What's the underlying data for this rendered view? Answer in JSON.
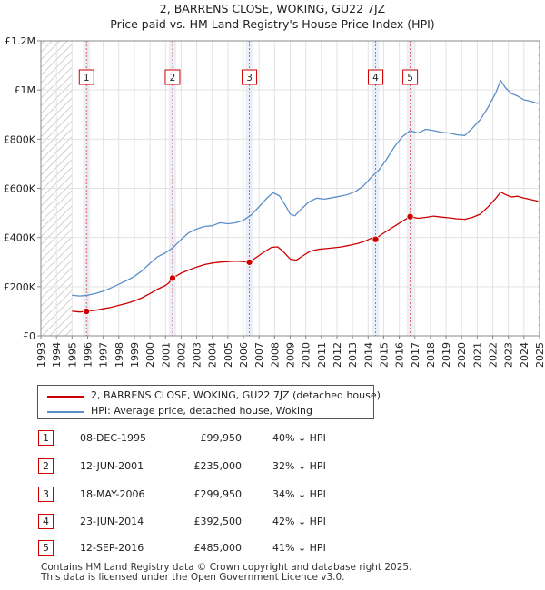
{
  "chart_data": {
    "type": "line",
    "title": "2, BARRENS CLOSE, WOKING, GU22 7JZ",
    "subtitle": "Price paid vs. HM Land Registry's House Price Index (HPI)",
    "xlim": [
      1993,
      2025
    ],
    "ylim": [
      0,
      1200000
    ],
    "x_ticks": [
      "1993",
      "1994",
      "1995",
      "1996",
      "1997",
      "1998",
      "1999",
      "2000",
      "2001",
      "2002",
      "2003",
      "2004",
      "2005",
      "2006",
      "2007",
      "2008",
      "2009",
      "2010",
      "2011",
      "2012",
      "2013",
      "2014",
      "2015",
      "2016",
      "2017",
      "2018",
      "2019",
      "2020",
      "2021",
      "2022",
      "2023",
      "2024",
      "2025"
    ],
    "y_ticks": [
      {
        "value": 0,
        "label": "£0"
      },
      {
        "value": 200000,
        "label": "£200K"
      },
      {
        "value": 400000,
        "label": "£400K"
      },
      {
        "value": 600000,
        "label": "£600K"
      },
      {
        "value": 800000,
        "label": "£800K"
      },
      {
        "value": 1000000,
        "label": "£1M"
      },
      {
        "value": 1200000,
        "label": "£1.2M"
      }
    ],
    "data_start": 1995.0,
    "data_end": 2024.9,
    "hatch_before": 1995.0,
    "series": [
      {
        "name": "2, BARRENS CLOSE, WOKING, GU22 7JZ (detached house)",
        "color": "#cc0000",
        "points": [
          [
            1995.0,
            100000
          ],
          [
            1995.5,
            97000
          ],
          [
            1995.93,
            99950
          ],
          [
            1996.5,
            104000
          ],
          [
            1997.0,
            110000
          ],
          [
            1997.5,
            116000
          ],
          [
            1998.0,
            124000
          ],
          [
            1998.5,
            132000
          ],
          [
            1999.0,
            142000
          ],
          [
            1999.5,
            155000
          ],
          [
            2000.0,
            172000
          ],
          [
            2000.5,
            190000
          ],
          [
            2001.0,
            205000
          ],
          [
            2001.2,
            215000
          ],
          [
            2001.45,
            235000
          ],
          [
            2002.0,
            255000
          ],
          [
            2002.5,
            268000
          ],
          [
            2003.0,
            280000
          ],
          [
            2003.5,
            290000
          ],
          [
            2004.0,
            296000
          ],
          [
            2004.5,
            300000
          ],
          [
            2005.0,
            302000
          ],
          [
            2005.5,
            304000
          ],
          [
            2006.0,
            302000
          ],
          [
            2006.38,
            299950
          ],
          [
            2006.8,
            318000
          ],
          [
            2007.3,
            340000
          ],
          [
            2007.8,
            360000
          ],
          [
            2008.2,
            362000
          ],
          [
            2008.6,
            340000
          ],
          [
            2009.0,
            312000
          ],
          [
            2009.4,
            308000
          ],
          [
            2009.8,
            325000
          ],
          [
            2010.3,
            345000
          ],
          [
            2010.8,
            352000
          ],
          [
            2011.3,
            355000
          ],
          [
            2011.8,
            358000
          ],
          [
            2012.3,
            362000
          ],
          [
            2012.8,
            368000
          ],
          [
            2013.3,
            375000
          ],
          [
            2013.8,
            385000
          ],
          [
            2014.3,
            400000
          ],
          [
            2014.48,
            392500
          ],
          [
            2014.8,
            410000
          ],
          [
            2015.3,
            430000
          ],
          [
            2015.8,
            450000
          ],
          [
            2016.3,
            470000
          ],
          [
            2016.7,
            485000
          ],
          [
            2017.2,
            478000
          ],
          [
            2017.7,
            482000
          ],
          [
            2018.2,
            487000
          ],
          [
            2018.7,
            483000
          ],
          [
            2019.2,
            480000
          ],
          [
            2019.7,
            476000
          ],
          [
            2020.2,
            474000
          ],
          [
            2020.7,
            482000
          ],
          [
            2021.2,
            495000
          ],
          [
            2021.7,
            525000
          ],
          [
            2022.2,
            560000
          ],
          [
            2022.5,
            585000
          ],
          [
            2022.8,
            575000
          ],
          [
            2023.2,
            565000
          ],
          [
            2023.6,
            568000
          ],
          [
            2024.0,
            560000
          ],
          [
            2024.4,
            555000
          ],
          [
            2024.9,
            548000
          ]
        ]
      },
      {
        "name": "HPI: Average price, detached house, Woking",
        "color": "#5b8fc7",
        "points": [
          [
            1995.0,
            165000
          ],
          [
            1995.5,
            162000
          ],
          [
            1996.0,
            165000
          ],
          [
            1996.5,
            172000
          ],
          [
            1997.0,
            182000
          ],
          [
            1997.5,
            195000
          ],
          [
            1998.0,
            210000
          ],
          [
            1998.5,
            225000
          ],
          [
            1999.0,
            242000
          ],
          [
            1999.5,
            265000
          ],
          [
            2000.0,
            295000
          ],
          [
            2000.5,
            322000
          ],
          [
            2001.0,
            338000
          ],
          [
            2001.5,
            360000
          ],
          [
            2002.0,
            392000
          ],
          [
            2002.5,
            420000
          ],
          [
            2003.0,
            435000
          ],
          [
            2003.5,
            445000
          ],
          [
            2004.0,
            448000
          ],
          [
            2004.5,
            460000
          ],
          [
            2005.0,
            456000
          ],
          [
            2005.5,
            460000
          ],
          [
            2006.0,
            470000
          ],
          [
            2006.5,
            492000
          ],
          [
            2007.0,
            525000
          ],
          [
            2007.5,
            560000
          ],
          [
            2007.9,
            582000
          ],
          [
            2008.3,
            570000
          ],
          [
            2008.7,
            530000
          ],
          [
            2009.0,
            495000
          ],
          [
            2009.3,
            488000
          ],
          [
            2009.7,
            515000
          ],
          [
            2010.2,
            545000
          ],
          [
            2010.7,
            560000
          ],
          [
            2011.2,
            556000
          ],
          [
            2011.7,
            562000
          ],
          [
            2012.2,
            568000
          ],
          [
            2012.7,
            575000
          ],
          [
            2013.2,
            588000
          ],
          [
            2013.7,
            610000
          ],
          [
            2014.2,
            645000
          ],
          [
            2014.7,
            675000
          ],
          [
            2015.2,
            720000
          ],
          [
            2015.7,
            770000
          ],
          [
            2016.2,
            810000
          ],
          [
            2016.7,
            835000
          ],
          [
            2017.2,
            825000
          ],
          [
            2017.7,
            840000
          ],
          [
            2018.2,
            835000
          ],
          [
            2018.7,
            828000
          ],
          [
            2019.2,
            825000
          ],
          [
            2019.7,
            818000
          ],
          [
            2020.2,
            815000
          ],
          [
            2020.7,
            845000
          ],
          [
            2021.2,
            880000
          ],
          [
            2021.7,
            930000
          ],
          [
            2022.2,
            990000
          ],
          [
            2022.5,
            1040000
          ],
          [
            2022.8,
            1010000
          ],
          [
            2023.2,
            985000
          ],
          [
            2023.6,
            975000
          ],
          [
            2024.0,
            960000
          ],
          [
            2024.4,
            955000
          ],
          [
            2024.9,
            945000
          ]
        ]
      }
    ],
    "sales": [
      {
        "num": "1",
        "x": 1995.93,
        "y": 99950,
        "date": "08-DEC-1995",
        "price": "£99,950",
        "hpi": "40% ↓ HPI"
      },
      {
        "num": "2",
        "x": 2001.45,
        "y": 235000,
        "date": "12-JUN-2001",
        "price": "£235,000",
        "hpi": "32% ↓ HPI"
      },
      {
        "num": "3",
        "x": 2006.38,
        "y": 299950,
        "date": "18-MAY-2006",
        "price": "£299,950",
        "hpi": "34% ↓ HPI"
      },
      {
        "num": "4",
        "x": 2014.48,
        "y": 392500,
        "date": "23-JUN-2014",
        "price": "£392,500",
        "hpi": "42% ↓ HPI"
      },
      {
        "num": "5",
        "x": 2016.7,
        "y": 485000,
        "date": "12-SEP-2016",
        "price": "£485,000",
        "hpi": "41% ↓ HPI"
      }
    ]
  },
  "legend": {
    "property_label": "2, BARRENS CLOSE, WOKING, GU22 7JZ (detached house)",
    "hpi_label": "HPI: Average price, detached house, Woking",
    "property_color": "#cc0000",
    "hpi_color": "#5b8fc7"
  },
  "footer": {
    "line1": "Contains HM Land Registry data © Crown copyright and database right 2025.",
    "line2": "This data is licensed under the Open Government Licence v3.0."
  }
}
